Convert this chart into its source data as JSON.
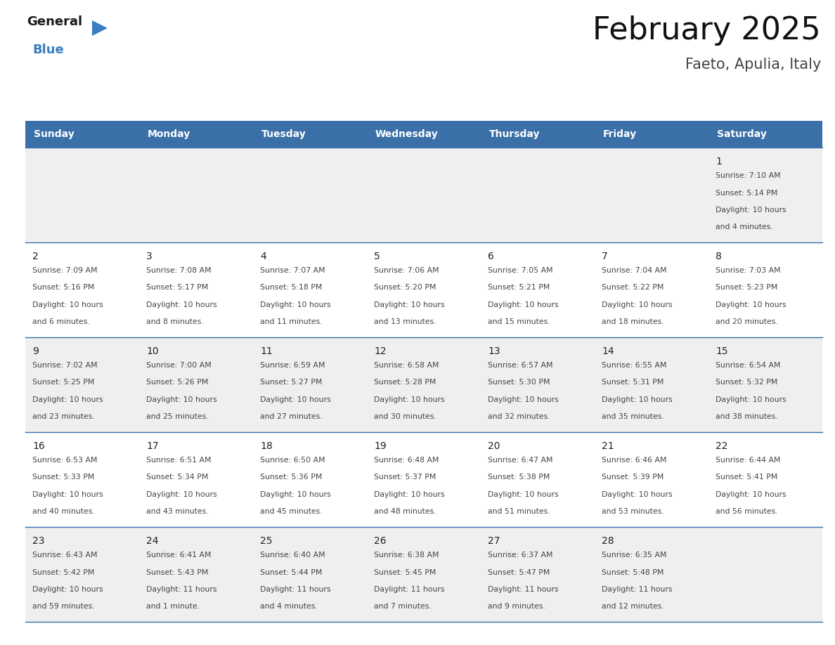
{
  "title": "February 2025",
  "subtitle": "Faeto, Apulia, Italy",
  "header_color": "#3a6fa8",
  "header_text_color": "#ffffff",
  "days_of_week": [
    "Sunday",
    "Monday",
    "Tuesday",
    "Wednesday",
    "Thursday",
    "Friday",
    "Saturday"
  ],
  "background_color": "#ffffff",
  "cell_bg_gray": "#efefef",
  "cell_bg_white": "#ffffff",
  "text_color": "#444444",
  "day_num_color": "#222222",
  "line_color": "#3a6fa8",
  "logo_black": "#1a1a1a",
  "logo_blue": "#3a7fc1",
  "calendar_data": [
    [
      null,
      null,
      null,
      null,
      null,
      null,
      {
        "day": "1",
        "sunrise": "Sunrise: 7:10 AM",
        "sunset": "Sunset: 5:14 PM",
        "daylight_l1": "Daylight: 10 hours",
        "daylight_l2": "and 4 minutes."
      }
    ],
    [
      {
        "day": "2",
        "sunrise": "Sunrise: 7:09 AM",
        "sunset": "Sunset: 5:16 PM",
        "daylight_l1": "Daylight: 10 hours",
        "daylight_l2": "and 6 minutes."
      },
      {
        "day": "3",
        "sunrise": "Sunrise: 7:08 AM",
        "sunset": "Sunset: 5:17 PM",
        "daylight_l1": "Daylight: 10 hours",
        "daylight_l2": "and 8 minutes."
      },
      {
        "day": "4",
        "sunrise": "Sunrise: 7:07 AM",
        "sunset": "Sunset: 5:18 PM",
        "daylight_l1": "Daylight: 10 hours",
        "daylight_l2": "and 11 minutes."
      },
      {
        "day": "5",
        "sunrise": "Sunrise: 7:06 AM",
        "sunset": "Sunset: 5:20 PM",
        "daylight_l1": "Daylight: 10 hours",
        "daylight_l2": "and 13 minutes."
      },
      {
        "day": "6",
        "sunrise": "Sunrise: 7:05 AM",
        "sunset": "Sunset: 5:21 PM",
        "daylight_l1": "Daylight: 10 hours",
        "daylight_l2": "and 15 minutes."
      },
      {
        "day": "7",
        "sunrise": "Sunrise: 7:04 AM",
        "sunset": "Sunset: 5:22 PM",
        "daylight_l1": "Daylight: 10 hours",
        "daylight_l2": "and 18 minutes."
      },
      {
        "day": "8",
        "sunrise": "Sunrise: 7:03 AM",
        "sunset": "Sunset: 5:23 PM",
        "daylight_l1": "Daylight: 10 hours",
        "daylight_l2": "and 20 minutes."
      }
    ],
    [
      {
        "day": "9",
        "sunrise": "Sunrise: 7:02 AM",
        "sunset": "Sunset: 5:25 PM",
        "daylight_l1": "Daylight: 10 hours",
        "daylight_l2": "and 23 minutes."
      },
      {
        "day": "10",
        "sunrise": "Sunrise: 7:00 AM",
        "sunset": "Sunset: 5:26 PM",
        "daylight_l1": "Daylight: 10 hours",
        "daylight_l2": "and 25 minutes."
      },
      {
        "day": "11",
        "sunrise": "Sunrise: 6:59 AM",
        "sunset": "Sunset: 5:27 PM",
        "daylight_l1": "Daylight: 10 hours",
        "daylight_l2": "and 27 minutes."
      },
      {
        "day": "12",
        "sunrise": "Sunrise: 6:58 AM",
        "sunset": "Sunset: 5:28 PM",
        "daylight_l1": "Daylight: 10 hours",
        "daylight_l2": "and 30 minutes."
      },
      {
        "day": "13",
        "sunrise": "Sunrise: 6:57 AM",
        "sunset": "Sunset: 5:30 PM",
        "daylight_l1": "Daylight: 10 hours",
        "daylight_l2": "and 32 minutes."
      },
      {
        "day": "14",
        "sunrise": "Sunrise: 6:55 AM",
        "sunset": "Sunset: 5:31 PM",
        "daylight_l1": "Daylight: 10 hours",
        "daylight_l2": "and 35 minutes."
      },
      {
        "day": "15",
        "sunrise": "Sunrise: 6:54 AM",
        "sunset": "Sunset: 5:32 PM",
        "daylight_l1": "Daylight: 10 hours",
        "daylight_l2": "and 38 minutes."
      }
    ],
    [
      {
        "day": "16",
        "sunrise": "Sunrise: 6:53 AM",
        "sunset": "Sunset: 5:33 PM",
        "daylight_l1": "Daylight: 10 hours",
        "daylight_l2": "and 40 minutes."
      },
      {
        "day": "17",
        "sunrise": "Sunrise: 6:51 AM",
        "sunset": "Sunset: 5:34 PM",
        "daylight_l1": "Daylight: 10 hours",
        "daylight_l2": "and 43 minutes."
      },
      {
        "day": "18",
        "sunrise": "Sunrise: 6:50 AM",
        "sunset": "Sunset: 5:36 PM",
        "daylight_l1": "Daylight: 10 hours",
        "daylight_l2": "and 45 minutes."
      },
      {
        "day": "19",
        "sunrise": "Sunrise: 6:48 AM",
        "sunset": "Sunset: 5:37 PM",
        "daylight_l1": "Daylight: 10 hours",
        "daylight_l2": "and 48 minutes."
      },
      {
        "day": "20",
        "sunrise": "Sunrise: 6:47 AM",
        "sunset": "Sunset: 5:38 PM",
        "daylight_l1": "Daylight: 10 hours",
        "daylight_l2": "and 51 minutes."
      },
      {
        "day": "21",
        "sunrise": "Sunrise: 6:46 AM",
        "sunset": "Sunset: 5:39 PM",
        "daylight_l1": "Daylight: 10 hours",
        "daylight_l2": "and 53 minutes."
      },
      {
        "day": "22",
        "sunrise": "Sunrise: 6:44 AM",
        "sunset": "Sunset: 5:41 PM",
        "daylight_l1": "Daylight: 10 hours",
        "daylight_l2": "and 56 minutes."
      }
    ],
    [
      {
        "day": "23",
        "sunrise": "Sunrise: 6:43 AM",
        "sunset": "Sunset: 5:42 PM",
        "daylight_l1": "Daylight: 10 hours",
        "daylight_l2": "and 59 minutes."
      },
      {
        "day": "24",
        "sunrise": "Sunrise: 6:41 AM",
        "sunset": "Sunset: 5:43 PM",
        "daylight_l1": "Daylight: 11 hours",
        "daylight_l2": "and 1 minute."
      },
      {
        "day": "25",
        "sunrise": "Sunrise: 6:40 AM",
        "sunset": "Sunset: 5:44 PM",
        "daylight_l1": "Daylight: 11 hours",
        "daylight_l2": "and 4 minutes."
      },
      {
        "day": "26",
        "sunrise": "Sunrise: 6:38 AM",
        "sunset": "Sunset: 5:45 PM",
        "daylight_l1": "Daylight: 11 hours",
        "daylight_l2": "and 7 minutes."
      },
      {
        "day": "27",
        "sunrise": "Sunrise: 6:37 AM",
        "sunset": "Sunset: 5:47 PM",
        "daylight_l1": "Daylight: 11 hours",
        "daylight_l2": "and 9 minutes."
      },
      {
        "day": "28",
        "sunrise": "Sunrise: 6:35 AM",
        "sunset": "Sunset: 5:48 PM",
        "daylight_l1": "Daylight: 11 hours",
        "daylight_l2": "and 12 minutes."
      },
      null
    ]
  ]
}
